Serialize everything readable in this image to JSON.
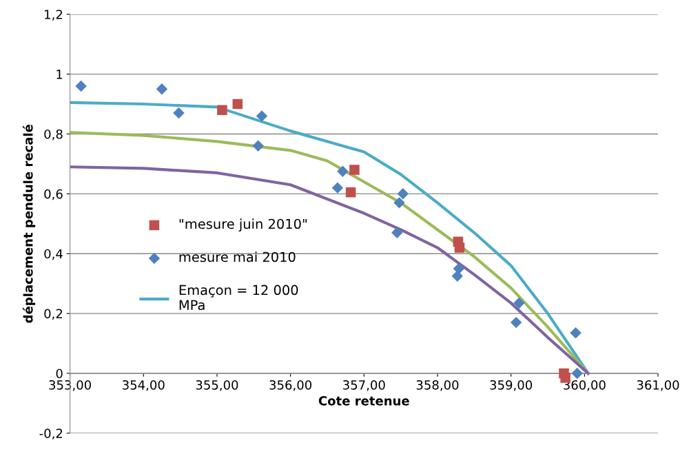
{
  "chart_data": {
    "type": "scatter",
    "xlabel": "Cote retenue",
    "ylabel": "déplacement pendule recalé",
    "xlim": [
      353,
      361
    ],
    "xticks": [
      {
        "value": 353,
        "label": "353,00"
      },
      {
        "value": 354,
        "label": "354,00"
      },
      {
        "value": 355,
        "label": "355,00"
      },
      {
        "value": 356,
        "label": "356,00"
      },
      {
        "value": 357,
        "label": "357,00"
      },
      {
        "value": 358,
        "label": "358,00"
      },
      {
        "value": 359,
        "label": "359,00"
      },
      {
        "value": 360,
        "label": "360,00"
      },
      {
        "value": 361,
        "label": "361,00"
      }
    ],
    "ylim": [
      -0.2,
      1.2
    ],
    "yticks": [
      {
        "value": -0.2,
        "label": "-0,2"
      },
      0,
      {
        "value": 0.2,
        "label": "0,2"
      },
      {
        "value": 0.4,
        "label": "0,4"
      },
      {
        "value": 0.6,
        "label": "0,6"
      },
      {
        "value": 0.8,
        "label": "0,8"
      },
      1,
      {
        "value": 1.2,
        "label": "1,2"
      }
    ],
    "grid": "y",
    "legend": "left",
    "series": [
      {
        "name": "\"mesure juin 2010\"",
        "marker": "square",
        "color": "#c0504d",
        "x": [
          355.07,
          355.28,
          356.87,
          356.82,
          358.28,
          358.3,
          359.72,
          359.74
        ],
        "values": [
          0.88,
          0.9,
          0.68,
          0.605,
          0.44,
          0.42,
          0.0,
          -0.015
        ]
      },
      {
        "name": "mesure mai 2010",
        "marker": "diamond",
        "color": "#4f81bd",
        "x": [
          353.15,
          354.25,
          354.48,
          355.61,
          355.56,
          356.71,
          356.64,
          357.53,
          357.48,
          357.45,
          358.29,
          358.27,
          359.11,
          359.07,
          359.88,
          359.9
        ],
        "values": [
          0.96,
          0.95,
          0.87,
          0.86,
          0.76,
          0.675,
          0.62,
          0.6,
          0.57,
          0.47,
          0.35,
          0.325,
          0.235,
          0.17,
          0.135,
          0.0
        ]
      },
      {
        "name": "Emaçon = 12 000\nMPa",
        "type": "line",
        "marker": "none",
        "color": "#4bacc6",
        "x": [
          353,
          354,
          355,
          356,
          357,
          357.5,
          358,
          358.5,
          359,
          359.5,
          360.05
        ],
        "values": [
          0.905,
          0.9,
          0.89,
          0.81,
          0.74,
          0.665,
          0.57,
          0.47,
          0.36,
          0.2,
          0.0
        ]
      },
      {
        "type": "line",
        "marker": "none",
        "color": "#9bbb59",
        "x": [
          353,
          354,
          355,
          356,
          356.5,
          357,
          357.5,
          358,
          358.5,
          359,
          359.5,
          360.05
        ],
        "values": [
          0.805,
          0.795,
          0.775,
          0.745,
          0.71,
          0.64,
          0.57,
          0.48,
          0.39,
          0.285,
          0.155,
          0.0
        ]
      },
      {
        "type": "line",
        "marker": "none",
        "color": "#8064a2",
        "x": [
          353,
          354,
          355,
          356,
          357,
          357.5,
          358,
          358.5,
          359,
          359.5,
          360.05
        ],
        "values": [
          0.69,
          0.685,
          0.67,
          0.63,
          0.535,
          0.48,
          0.42,
          0.33,
          0.235,
          0.12,
          0.0
        ]
      }
    ]
  }
}
